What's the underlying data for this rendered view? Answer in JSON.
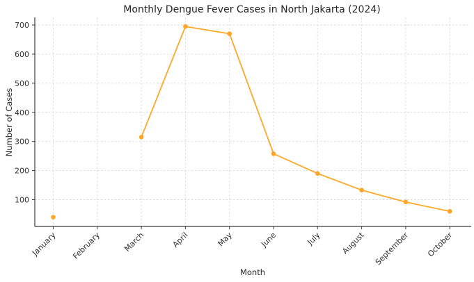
{
  "chart_data": {
    "type": "line",
    "title": "Monthly Dengue Fever Cases in North Jakarta (2024)",
    "xlabel": "Month",
    "ylabel": "Number of Cases",
    "categories": [
      "January",
      "February",
      "March",
      "April",
      "May",
      "June",
      "July",
      "August",
      "September",
      "October"
    ],
    "values": [
      40,
      null,
      315,
      695,
      670,
      258,
      190,
      133,
      92,
      60
    ],
    "yticks": [
      100,
      200,
      300,
      400,
      500,
      600,
      700
    ],
    "ylim": [
      0,
      730
    ],
    "grid": true,
    "grid_style": "dashed",
    "legend_position": "none",
    "line_color": "#FFA726",
    "marker": "circle",
    "text_color": "#2e2e2e",
    "spine_color": "#3a3a3a",
    "grid_color": "#d9d9d9",
    "note": "February has no plotted data point; the line is broken between January and March."
  }
}
